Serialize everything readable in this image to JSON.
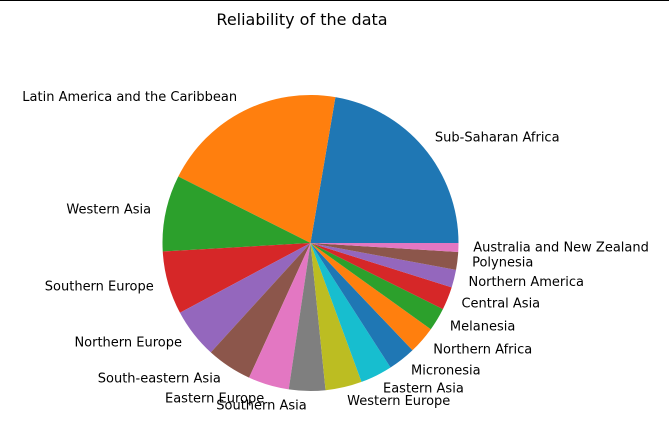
{
  "chart_data": {
    "type": "pie",
    "title": "Reliability of the data",
    "start_angle_deg": 0,
    "direction": "counterclockwise",
    "slices": [
      {
        "label": "Sub-Saharan Africa",
        "value": 23.0,
        "color": "#1f77b4"
      },
      {
        "label": "Latin America and the Caribbean",
        "value": 20.9,
        "color": "#ff7f0e"
      },
      {
        "label": "Western Asia",
        "value": 8.6,
        "color": "#2ca02c"
      },
      {
        "label": "Southern Europe",
        "value": 7.1,
        "color": "#d62728"
      },
      {
        "label": "Northern Europe",
        "value": 5.6,
        "color": "#9467bd"
      },
      {
        "label": "South-eastern Asia",
        "value": 5.1,
        "color": "#8c564b"
      },
      {
        "label": "Eastern Europe",
        "value": 4.6,
        "color": "#e377c2"
      },
      {
        "label": "Southern Asia",
        "value": 4.1,
        "color": "#7f7f7f"
      },
      {
        "label": "Western Europe",
        "value": 4.1,
        "color": "#bcbd22"
      },
      {
        "label": "Eastern Asia",
        "value": 3.6,
        "color": "#17becf"
      },
      {
        "label": "Micronesia",
        "value": 3.1,
        "color": "#1f77b4"
      },
      {
        "label": "Northern Africa",
        "value": 3.1,
        "color": "#ff7f0e"
      },
      {
        "label": "Melanesia",
        "value": 2.6,
        "color": "#2ca02c"
      },
      {
        "label": "Central Asia",
        "value": 2.6,
        "color": "#d62728"
      },
      {
        "label": "Northern America",
        "value": 2.0,
        "color": "#9467bd"
      },
      {
        "label": "Polynesia",
        "value": 2.0,
        "color": "#8c564b"
      },
      {
        "label": "Australia and New Zealand",
        "value": 1.0,
        "color": "#e377c2"
      }
    ]
  }
}
